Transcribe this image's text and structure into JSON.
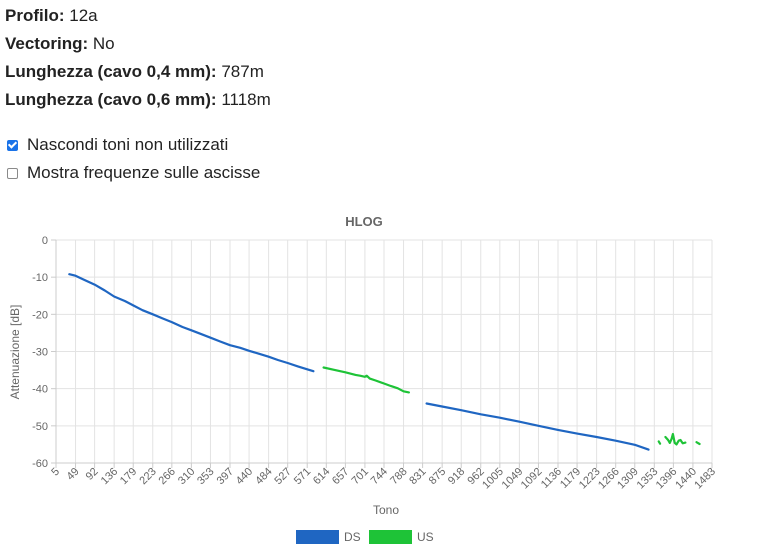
{
  "info": {
    "profile_label": "Profilo:",
    "profile_value": "12a",
    "vectoring_label": "Vectoring:",
    "vectoring_value": "No",
    "len04_label": "Lunghezza (cavo 0,4 mm):",
    "len04_value": "787m",
    "len06_label": "Lunghezza (cavo 0,6 mm):",
    "len06_value": "1118m"
  },
  "options": [
    {
      "label": "Nascondi toni non utilizzati",
      "checked": true
    },
    {
      "label": "Mostra frequenze sulle ascisse",
      "checked": false
    }
  ],
  "chart_data": {
    "type": "line",
    "title": "HLOG",
    "xlabel": "Tono",
    "ylabel": "Attenuazione [dB]",
    "xlim": [
      5,
      1483
    ],
    "ylim": [
      -60,
      0
    ],
    "yticks": [
      0,
      -10,
      -20,
      -30,
      -40,
      -50,
      -60
    ],
    "xticks": [
      5,
      49,
      92,
      136,
      179,
      223,
      266,
      310,
      353,
      397,
      440,
      484,
      527,
      571,
      614,
      657,
      701,
      744,
      788,
      831,
      875,
      918,
      962,
      1005,
      1049,
      1092,
      1136,
      1179,
      1223,
      1266,
      1309,
      1353,
      1396,
      1440,
      1483
    ],
    "grid": true,
    "legend_position": "bottom",
    "series": [
      {
        "name": "DS",
        "color": "#1f66c2",
        "segments": [
          [
            [
              35,
              -9.2
            ],
            [
              49,
              -9.6
            ],
            [
              70,
              -10.8
            ],
            [
              92,
              -12.0
            ],
            [
              115,
              -13.6
            ],
            [
              136,
              -15.2
            ],
            [
              160,
              -16.4
            ],
            [
              179,
              -17.6
            ],
            [
              200,
              -18.9
            ],
            [
              223,
              -20.0
            ],
            [
              245,
              -21.1
            ],
            [
              266,
              -22.1
            ],
            [
              290,
              -23.4
            ],
            [
              310,
              -24.3
            ],
            [
              330,
              -25.2
            ],
            [
              353,
              -26.3
            ],
            [
              375,
              -27.3
            ],
            [
              397,
              -28.3
            ],
            [
              420,
              -29.0
            ],
            [
              440,
              -29.8
            ],
            [
              462,
              -30.6
            ],
            [
              484,
              -31.4
            ],
            [
              505,
              -32.3
            ],
            [
              527,
              -33.1
            ],
            [
              550,
              -34.0
            ],
            [
              571,
              -34.8
            ],
            [
              585,
              -35.3
            ]
          ],
          [
            [
              840,
              -44.0
            ],
            [
              875,
              -44.8
            ],
            [
              918,
              -45.8
            ],
            [
              962,
              -46.9
            ],
            [
              1005,
              -47.8
            ],
            [
              1049,
              -48.9
            ],
            [
              1092,
              -50.0
            ],
            [
              1136,
              -51.1
            ],
            [
              1179,
              -52.1
            ],
            [
              1223,
              -53.0
            ],
            [
              1266,
              -54.0
            ],
            [
              1309,
              -55.1
            ],
            [
              1340,
              -56.4
            ]
          ]
        ]
      },
      {
        "name": "US",
        "color": "#1ec337",
        "segments": [
          [
            [
              608,
              -34.3
            ],
            [
              630,
              -34.9
            ],
            [
              657,
              -35.6
            ],
            [
              680,
              -36.3
            ],
            [
              690,
              -36.5
            ],
            [
              701,
              -36.8
            ],
            [
              705,
              -36.5
            ],
            [
              712,
              -37.3
            ],
            [
              725,
              -37.8
            ],
            [
              744,
              -38.6
            ],
            [
              760,
              -39.3
            ],
            [
              775,
              -39.9
            ],
            [
              788,
              -40.7
            ],
            [
              800,
              -41.0
            ]
          ],
          [
            [
              1363,
              -54.2
            ],
            [
              1366,
              -54.8
            ]
          ],
          [
            [
              1378,
              -53.0
            ],
            [
              1384,
              -53.8
            ],
            [
              1388,
              -54.6
            ],
            [
              1392,
              -53.5
            ],
            [
              1395,
              -52.2
            ],
            [
              1399,
              -54.6
            ],
            [
              1403,
              -55.0
            ],
            [
              1408,
              -54.0
            ],
            [
              1412,
              -53.8
            ],
            [
              1417,
              -54.7
            ],
            [
              1423,
              -54.5
            ]
          ],
          [
            [
              1448,
              -54.4
            ],
            [
              1455,
              -54.9
            ]
          ]
        ]
      }
    ]
  }
}
